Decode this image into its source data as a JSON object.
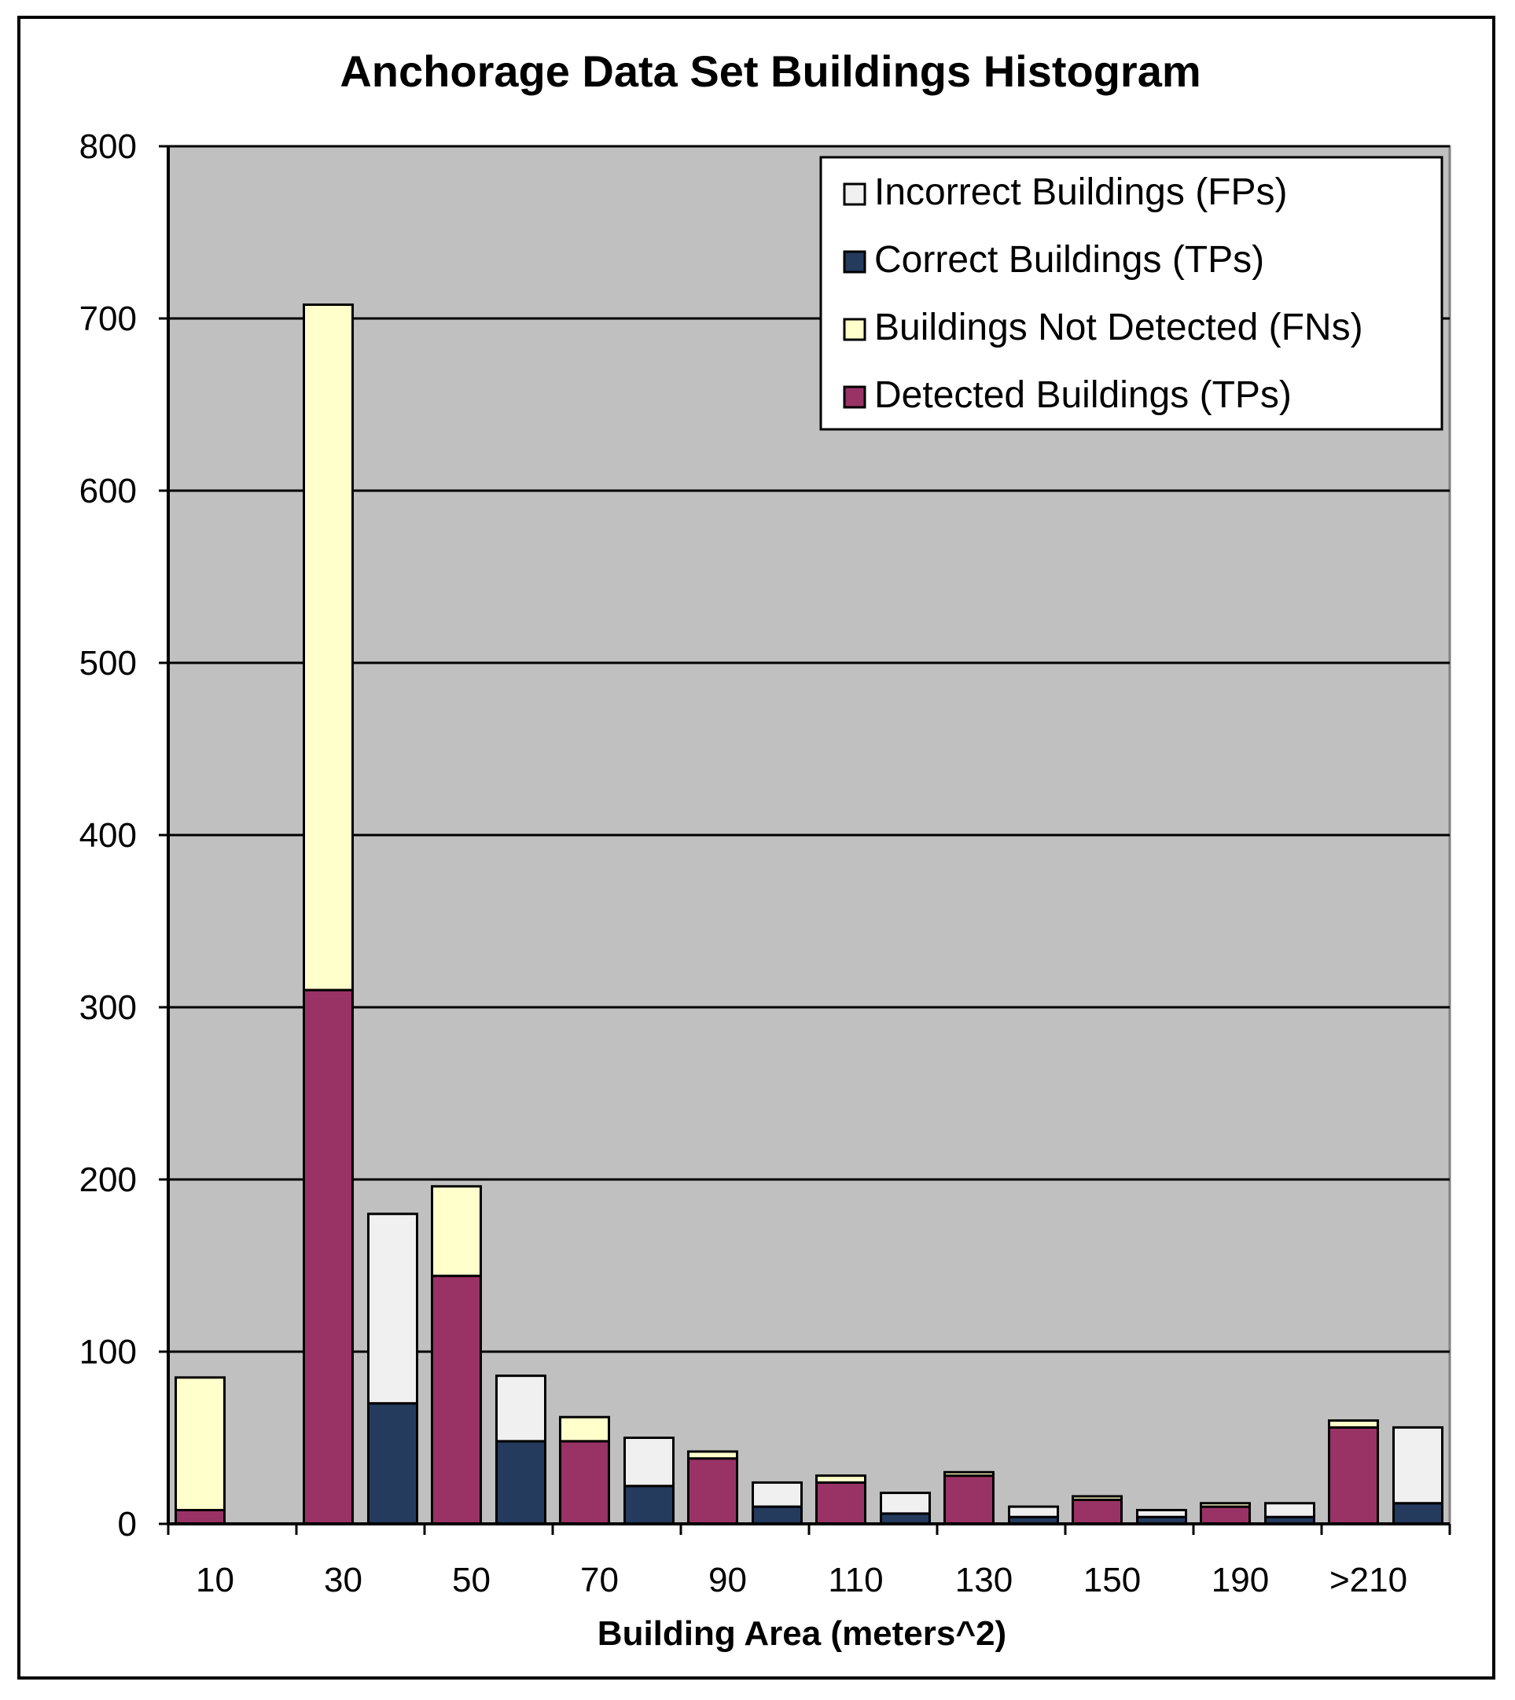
{
  "chart_data": {
    "type": "bar",
    "stacked": true,
    "title": "Anchorage Data Set Buildings Histogram",
    "xlabel": "Building Area (meters^2)",
    "ylabel": "",
    "ylim": [
      0,
      800
    ],
    "yticks": [
      0,
      100,
      200,
      300,
      400,
      500,
      600,
      700,
      800
    ],
    "xtick_labels": [
      "10",
      "30",
      "50",
      "70",
      "90",
      "110",
      "130",
      "150",
      "190",
      ">210"
    ],
    "groups": [
      {
        "label": "10",
        "detected": 8,
        "not_detected": 77,
        "correct": 0,
        "incorrect": 0
      },
      {
        "label": "30",
        "detected": 310,
        "not_detected": 398,
        "correct": 70,
        "incorrect": 110
      },
      {
        "label": "50",
        "detected": 144,
        "not_detected": 52,
        "correct": 48,
        "incorrect": 38
      },
      {
        "label": "70",
        "detected": 48,
        "not_detected": 14,
        "correct": 22,
        "incorrect": 28
      },
      {
        "label": "90",
        "detected": 38,
        "not_detected": 4,
        "correct": 10,
        "incorrect": 14
      },
      {
        "label": "110",
        "detected": 24,
        "not_detected": 4,
        "correct": 6,
        "incorrect": 12
      },
      {
        "label": "130",
        "detected": 28,
        "not_detected": 2,
        "correct": 4,
        "incorrect": 6
      },
      {
        "label": "150",
        "detected": 14,
        "not_detected": 2,
        "correct": 4,
        "incorrect": 4
      },
      {
        "label": "190",
        "detected": 10,
        "not_detected": 2,
        "correct": 4,
        "incorrect": 8
      },
      {
        "label": ">210",
        "detected": 56,
        "not_detected": 4,
        "correct": 12,
        "incorrect": 44
      }
    ],
    "legend": [
      {
        "key": "incorrect",
        "label": "Incorrect Buildings (FPs)",
        "color": "#f0f0f0"
      },
      {
        "key": "correct",
        "label": "Correct Buildings (TPs)",
        "color": "#243b5e"
      },
      {
        "key": "not_detected",
        "label": "Buildings Not Detected (FNs)",
        "color": "#ffffcc"
      },
      {
        "key": "detected",
        "label": "Detected Buildings (TPs)",
        "color": "#993366"
      }
    ],
    "legend_position": "top-right",
    "plot_background": "#c0c0c0",
    "grid": true
  }
}
